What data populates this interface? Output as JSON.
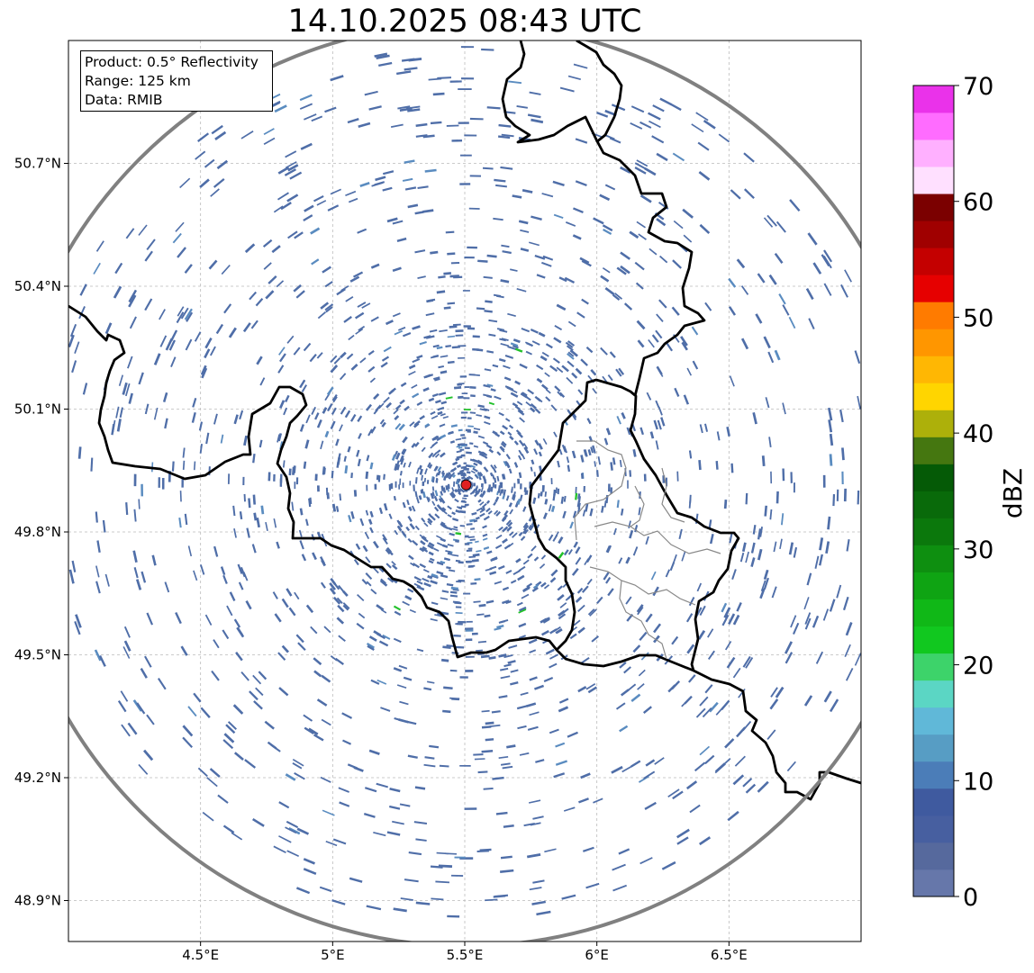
{
  "title": "14.10.2025 08:43 UTC",
  "info": {
    "product": "Product: 0.5° Reflectivity",
    "range": "Range: 125 km",
    "data": "Data: RMIB"
  },
  "map": {
    "lon_range": [
      4.0,
      7.0
    ],
    "lat_range": [
      48.8,
      51.0
    ],
    "radar_site": {
      "lon": 5.505,
      "lat": 49.915
    },
    "range_km": 125,
    "lon_ticks": [
      {
        "value": 4.5,
        "label": "4.5°E"
      },
      {
        "value": 5.0,
        "label": "5°E"
      },
      {
        "value": 5.5,
        "label": "5.5°E"
      },
      {
        "value": 6.0,
        "label": "6°E"
      },
      {
        "value": 6.5,
        "label": "6.5°E"
      }
    ],
    "lat_ticks": [
      {
        "value": 50.7,
        "label": "50.7°N"
      },
      {
        "value": 50.4,
        "label": "50.4°N"
      },
      {
        "value": 50.1,
        "label": "50.1°N"
      },
      {
        "value": 49.8,
        "label": "49.8°N"
      },
      {
        "value": 49.5,
        "label": "49.5°N"
      },
      {
        "value": 49.2,
        "label": "49.2°N"
      },
      {
        "value": 48.9,
        "label": "48.9°N"
      }
    ],
    "gridlines": true,
    "echo_color": "#4f6ea8",
    "light_echo_color": "#5a8cc0",
    "green_echo_color": "#22c12a",
    "radar_dot_color": "#e02020",
    "range_ring_color": "#808080",
    "border_color": "#000000",
    "admin_border_color": "#888888"
  },
  "colorbar": {
    "label": "dBZ",
    "min": 0,
    "max": 70,
    "step": 2.5,
    "ticks": [
      0,
      10,
      20,
      30,
      40,
      50,
      60,
      70
    ],
    "colors": [
      "#6677aa",
      "#56699d",
      "#475fa0",
      "#3f5a9f",
      "#4b7db8",
      "#579dc4",
      "#60b8d8",
      "#5bd6c4",
      "#3dd36a",
      "#11c81f",
      "#10b817",
      "#0fa413",
      "#0e8f10",
      "#0b780c",
      "#096a0a",
      "#055a06",
      "#457710",
      "#adb00a",
      "#ffd500",
      "#ffb703",
      "#ff9600",
      "#ff7b00",
      "#e60000",
      "#c40000",
      "#a00000",
      "#7b0000",
      "#ffe0ff",
      "#ffb0ff",
      "#ff6cff",
      "#ea32ea"
    ]
  }
}
